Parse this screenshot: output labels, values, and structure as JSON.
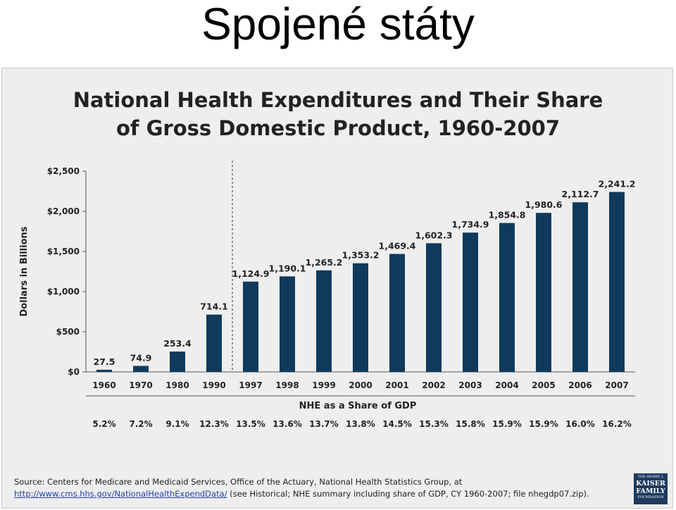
{
  "slide": {
    "title": "Spojené státy"
  },
  "chart_data": {
    "type": "bar",
    "title": "National Health Expenditures and Their Share of Gross Domestic Product, 1960-2007",
    "title_lines": [
      "National Health Expenditures and Their Share",
      "of Gross Domestic Product, 1960-2007"
    ],
    "ylabel": "Dollars in Billions",
    "ylim": [
      0,
      2500
    ],
    "yticks": [
      0,
      500,
      1000,
      1500,
      2000,
      2500
    ],
    "ytick_labels": [
      "$0",
      "$500",
      "$1,000",
      "$1,500",
      "$2,000",
      "$2,500"
    ],
    "categories": [
      "1960",
      "1970",
      "1980",
      "1990",
      "1997",
      "1998",
      "1999",
      "2000",
      "2001",
      "2002",
      "2003",
      "2004",
      "2005",
      "2006",
      "2007"
    ],
    "values": [
      27.5,
      74.9,
      253.4,
      714.1,
      1124.9,
      1190.1,
      1265.2,
      1353.2,
      1469.4,
      1602.3,
      1734.9,
      1854.8,
      1980.6,
      2112.7,
      2241.2
    ],
    "value_labels": [
      "27.5",
      "74.9",
      "253.4",
      "714.1",
      "1,124.9",
      "1,190.1",
      "1,265.2",
      "1,353.2",
      "1,469.4",
      "1,602.3",
      "1,734.9",
      "1,854.8",
      "1,980.6",
      "2,112.7",
      "2,241.2"
    ],
    "bar_color": "#0f3a5c",
    "grid": false,
    "divider_after": "1990",
    "share_title": "NHE as a Share of GDP",
    "share_of_gdp": [
      "5.2%",
      "7.2%",
      "9.1%",
      "12.3%",
      "13.5%",
      "13.6%",
      "13.7%",
      "13.8%",
      "14.5%",
      "15.3%",
      "15.8%",
      "15.9%",
      "15.9%",
      "16.0%",
      "16.2%"
    ]
  },
  "source": {
    "line1": "Source: Centers for Medicare and Medicaid Services, Office of the Actuary, National Health Statistics Group, at",
    "link": "http://www.cms.hhs.gov/NationalHealthExpendData/",
    "line2_rest": " (see Historical; NHE summary including share of GDP, CY 1960-2007; file nhegdp07.zip)."
  },
  "logo": {
    "line1": "THE HENRY J.",
    "line2a": "KAISER",
    "line2b": "FAMILY",
    "line3": "FOUNDATION"
  }
}
